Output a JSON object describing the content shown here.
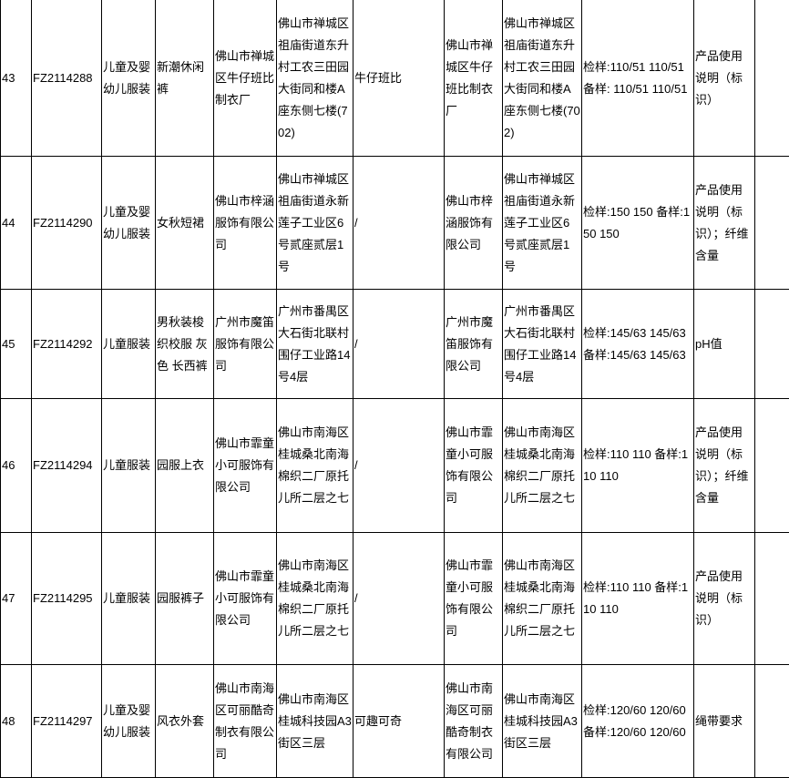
{
  "rows": [
    {
      "no": "43",
      "code": "FZ2114288",
      "category": "儿童及婴幼儿服装",
      "product": "新潮休闲裤",
      "producer": "佛山市禅城区牛仔班比制衣厂",
      "producer_address": "佛山市禅城区祖庙街道东升村工农三田园大街同和楼A座东侧七楼(702)",
      "brand": "牛仔班比",
      "seller": "佛山市禅城区牛仔班比制衣厂",
      "seller_address": "佛山市禅城区祖庙街道东升村工农三田园大街同和楼A座东侧七楼(702)",
      "spec": "检样:110/51 110/51 备样: 110/51 110/51",
      "items": "产品使用说明（标识）",
      "note": ""
    },
    {
      "no": "44",
      "code": "FZ2114290",
      "category": "儿童及婴幼儿服装",
      "product": "女秋短裙",
      "producer": "佛山市梓涵服饰有限公司",
      "producer_address": "佛山市禅城区祖庙街道永新莲子工业区6号贰座贰层1号",
      "brand": "/",
      "seller": "佛山市梓涵服饰有限公司",
      "seller_address": "佛山市禅城区祖庙街道永新莲子工业区6号贰座贰层1号",
      "spec": "检样:150 150 备样:150 150",
      "items": "产品使用说明（标识）；纤维含量",
      "note": ""
    },
    {
      "no": "45",
      "code": "FZ2114292",
      "category": "儿童服装",
      "product": "男秋装梭织校服 灰色 长西裤",
      "producer": "广州市魔笛服饰有限公司",
      "producer_address": "广州市番禺区大石街北联村围仔工业路14号4层",
      "brand": "/",
      "seller": "广州市魔笛服饰有限公司",
      "seller_address": "广州市番禺区大石街北联村围仔工业路14号4层",
      "spec": "检样:145/63 145/63 备样:145/63 145/63",
      "items": "pH值",
      "note": ""
    },
    {
      "no": "46",
      "code": "FZ2114294",
      "category": "儿童服装",
      "product": "园服上衣",
      "producer": "佛山市霏童小可服饰有限公司",
      "producer_address": "佛山市南海区桂城桑北南海棉织二厂原托儿所二层之七",
      "brand": "/",
      "seller": "佛山市霏童小可服饰有限公司",
      "seller_address": "佛山市南海区桂城桑北南海棉织二厂原托儿所二层之七",
      "spec": "检样:110 110 备样:110 110",
      "items": "产品使用说明（标识）；纤维含量",
      "note": ""
    },
    {
      "no": "47",
      "code": "FZ2114295",
      "category": "儿童服装",
      "product": "园服裤子",
      "producer": "佛山市霏童小可服饰有限公司",
      "producer_address": "佛山市南海区桂城桑北南海棉织二厂原托儿所二层之七",
      "brand": "/",
      "seller": "佛山市霏童小可服饰有限公司",
      "seller_address": "佛山市南海区桂城桑北南海棉织二厂原托儿所二层之七",
      "spec": "检样:110 110 备样:110 110",
      "items": "产品使用说明（标识）",
      "note": ""
    },
    {
      "no": "48",
      "code": "FZ2114297",
      "category": "儿童及婴幼儿服装",
      "product": "风衣外套",
      "producer": "佛山市南海区可丽酷奇制衣有限公司",
      "producer_address": "佛山市南海区桂城科技园A3街区三层",
      "brand": "可趣可奇",
      "seller": "佛山市南海区可丽酷奇制衣有限公司",
      "seller_address": "佛山市南海区桂城科技园A3街区三层",
      "spec": "检样:120/60 120/60 备样:120/60 120/60",
      "items": "绳带要求",
      "note": ""
    }
  ]
}
